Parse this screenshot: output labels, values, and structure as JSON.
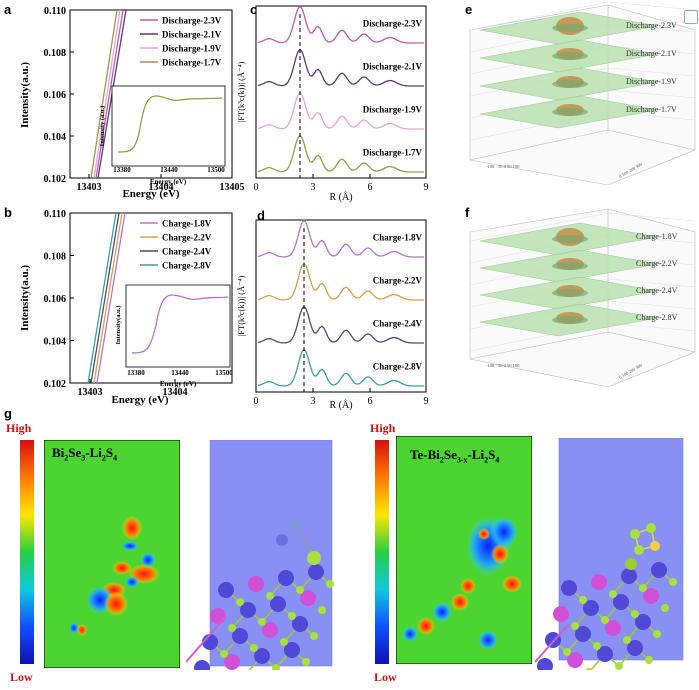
{
  "panels": {
    "a": {
      "letter": "a",
      "ylabel": "Intensity(a.u.)",
      "xlabel": "Energy (eV)",
      "yticks": [
        "0.110",
        "0.108",
        "0.106",
        "0.104",
        "0.102"
      ],
      "xticks": [
        "13403",
        "13404",
        "13405"
      ],
      "legend": [
        {
          "label": "Discharge-2.3V",
          "color": "#c45aa6"
        },
        {
          "label": "Discharge-2.1V",
          "color": "#5a3c78"
        },
        {
          "label": "Discharge-1.9V",
          "color": "#e2a6dc"
        },
        {
          "label": "Discharge-1.7V",
          "color": "#9c9a4a"
        }
      ],
      "inset": {
        "ylabel": "Intensity (a.u.)",
        "xlabel": "Energy (eV)",
        "xticks": [
          "13380",
          "13440",
          "13500"
        ]
      }
    },
    "b": {
      "letter": "b",
      "ylabel": "Intensity(a.u.)",
      "xlabel": "Energy (eV)",
      "yticks": [
        "0.110",
        "0.108",
        "0.106",
        "0.104",
        "0.102"
      ],
      "xticks": [
        "13403",
        "13404"
      ],
      "legend": [
        {
          "label": "Charge-1.8V",
          "color": "#b676c6"
        },
        {
          "label": "Charge-2.2V",
          "color": "#d8a04a"
        },
        {
          "label": "Charge-2.4V",
          "color": "#4e4a7c"
        },
        {
          "label": "Charge-2.8V",
          "color": "#3aa296"
        }
      ],
      "inset": {
        "ylabel": "Intensity(a.u.)",
        "xlabel": "Energy (eV)",
        "xticks": [
          "13380",
          "13440",
          "13500"
        ]
      }
    },
    "c": {
      "letter": "c",
      "ylabel": "|FT(k³c(k))| (Å⁻⁴)",
      "xlabel": "R (Å)",
      "xticks": [
        "0",
        "3",
        "6",
        "9"
      ],
      "curves": [
        {
          "label": "Discharge-2.3V",
          "color": "#c45aa6"
        },
        {
          "label": "Discharge-2.1V",
          "color": "#5a3c78"
        },
        {
          "label": "Discharge-1.9V",
          "color": "#e2a6dc"
        },
        {
          "label": "Discharge-1.7V",
          "color": "#9c9a4a"
        }
      ]
    },
    "d": {
      "letter": "d",
      "ylabel": "|FT(k³c(k))| (Å⁻⁴)",
      "xlabel": "R (Å)",
      "xticks": [
        "0",
        "3",
        "6",
        "9"
      ],
      "curves": [
        {
          "label": "Charge-1.8V",
          "color": "#b676c6"
        },
        {
          "label": "Charge-2.2V",
          "color": "#d8a04a"
        },
        {
          "label": "Charge-2.4V",
          "color": "#4e4a7c"
        },
        {
          "label": "Charge-2.8V",
          "color": "#3aa296"
        }
      ]
    },
    "e": {
      "letter": "e",
      "layers": [
        "Discharge-2.3V",
        "Discharge-2.1V",
        "Discharge-1.9V",
        "Discharge-1.7V"
      ]
    },
    "f": {
      "letter": "f",
      "layers": [
        "Charge-1.8V",
        "Charge-2.2V",
        "Charge-2.4V",
        "Charge-2.8V"
      ]
    },
    "g": {
      "letter": "g",
      "left": {
        "high": "High",
        "low": "Low",
        "title_main": "Bi",
        "title_sub1": "2",
        "title_mid": "Se",
        "title_sub2": "3",
        "title_end": "-Li",
        "title_sub3": "2",
        "title_tail": "S",
        "title_sub4": "4"
      },
      "right": {
        "high": "High",
        "low": "Low",
        "title_pre": "Te-Bi",
        "title_sub1": "2",
        "title_mid": "Se",
        "title_sub2": "3-x",
        "title_end": "-Li",
        "title_sub3": "2",
        "title_tail": "S",
        "title_sub4": "4"
      }
    }
  }
}
